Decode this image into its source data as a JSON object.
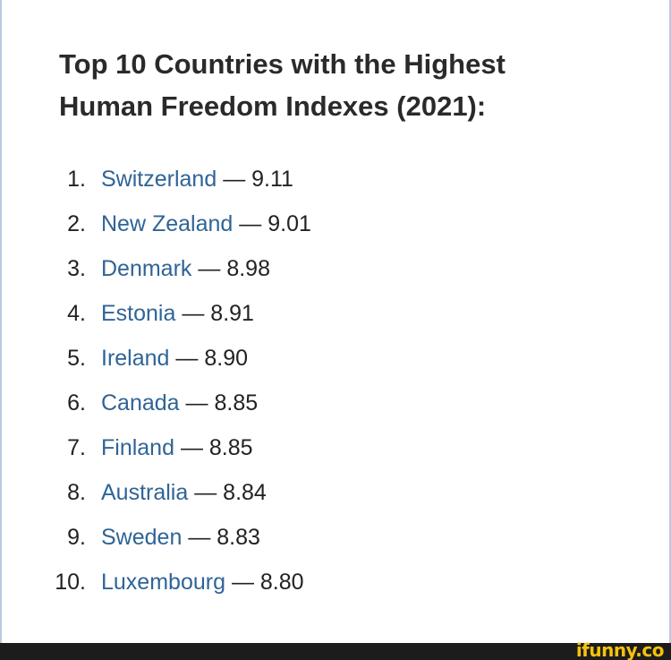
{
  "title": {
    "line1": "Top 10 Countries with the Highest",
    "line2": "Human Freedom Indexes (2021):"
  },
  "separator": "—",
  "items": [
    {
      "number": "1.",
      "country": "Switzerland",
      "score": "9.11"
    },
    {
      "number": "2.",
      "country": "New Zealand",
      "score": "9.01"
    },
    {
      "number": "3.",
      "country": "Denmark",
      "score": "8.98"
    },
    {
      "number": "4.",
      "country": "Estonia",
      "score": "8.91"
    },
    {
      "number": "5.",
      "country": "Ireland",
      "score": "8.90"
    },
    {
      "number": "6.",
      "country": "Canada",
      "score": "8.85"
    },
    {
      "number": "7.",
      "country": "Finland",
      "score": "8.85"
    },
    {
      "number": "8.",
      "country": "Australia",
      "score": "8.84"
    },
    {
      "number": "9.",
      "country": "Sweden",
      "score": "8.83"
    },
    {
      "number": "10.",
      "country": "Luxembourg",
      "score": "8.80"
    }
  ],
  "watermark": {
    "text": "ifunny.co"
  },
  "colors": {
    "link": "#2f6496",
    "text": "#222222",
    "footer": "#1c1c1c",
    "watermark": "#f4c20d"
  }
}
